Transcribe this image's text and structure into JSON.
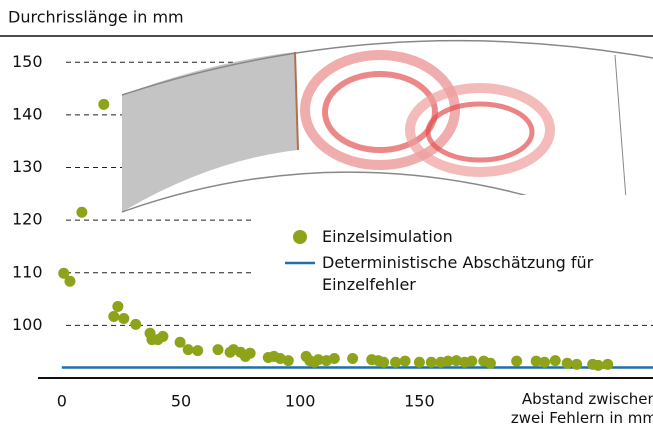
{
  "chart_data": {
    "type": "scatter",
    "y_label": "Durchrisslänge in mm",
    "x_label": "Abstand zwischen zwei Fehlern in mm",
    "xlim": [
      -10,
      248
    ],
    "ylim": [
      90,
      155
    ],
    "xticks": [
      0,
      50,
      100,
      150
    ],
    "yticks": [
      100,
      110,
      120,
      130,
      140,
      150
    ],
    "grid": true,
    "series": [
      {
        "name": "Einzelsimulation",
        "color": "#8ea31a",
        "x": [
          0.8,
          3.4,
          17.6,
          8.4,
          21.8,
          23.5,
          26,
          31,
          37,
          37.8,
          40.3,
          42.4,
          49.6,
          53,
          57,
          65.5,
          70.6,
          72,
          75,
          77,
          79,
          86.6,
          89,
          91.6,
          95,
          102.5,
          104,
          106,
          107.6,
          111,
          114.3,
          122,
          130,
          132.8,
          135,
          140,
          144,
          150,
          155,
          159,
          162,
          165.5,
          169,
          172,
          177,
          179.8,
          190.8,
          199,
          202.5,
          207,
          212,
          216,
          222.7,
          225,
          229
        ],
        "values": [
          109.9,
          108.4,
          142,
          121.5,
          101.7,
          103.6,
          101.3,
          100.2,
          98.5,
          97.3,
          97.3,
          97.9,
          96.8,
          95.4,
          95.2,
          95.4,
          94.9,
          95.4,
          94.9,
          94.1,
          94.7,
          93.9,
          94.1,
          93.7,
          93.3,
          94.1,
          93.3,
          93,
          93.5,
          93.3,
          93.7,
          93.7,
          93.5,
          93.3,
          93,
          93,
          93.2,
          93,
          93,
          93,
          93.2,
          93.3,
          93,
          93.2,
          93.2,
          92.8,
          93.2,
          93.2,
          93,
          93.3,
          92.8,
          92.6,
          92.6,
          92.4,
          92.6
        ]
      },
      {
        "name": "Deterministische Abschätzung für Einzelfehler",
        "color": "#1f6fa8",
        "type": "line",
        "x": [
          0,
          248
        ],
        "values": [
          92,
          92
        ]
      }
    ]
  }
}
